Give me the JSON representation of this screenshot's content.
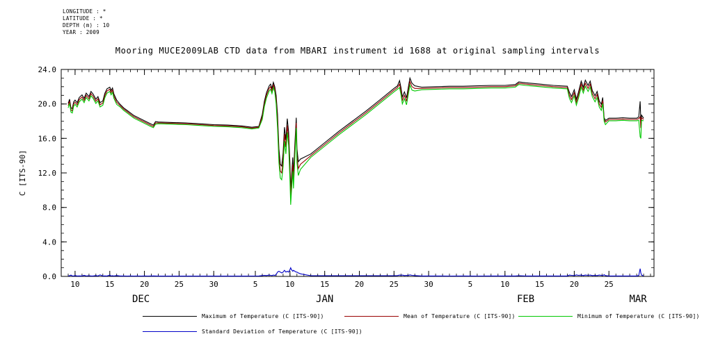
{
  "meta": {
    "longitude": "LONGITUDE : *",
    "latitude": "LATITUDE : *",
    "depth": "DEPTH (m) : 10",
    "year": "YEAR : 2009"
  },
  "title": "Mooring MUCE2009LAB CTD data from MBARI instrument id 1688 at original sampling intervals",
  "chart_data": {
    "type": "line",
    "title": "Mooring MUCE2009LAB CTD data from MBARI instrument id 1688 at original sampling intervals",
    "xlabel": "",
    "ylabel": "C [ITS-90]",
    "ylim": [
      0,
      24
    ],
    "xlim": [
      8,
      93.5
    ],
    "x_axis_note": "x in days, Dec 1 = 1, Jan 1 = 32, Feb 1 = 63, Mar 1 = 91",
    "grid": false,
    "legend_position": "bottom",
    "y_ticks": [
      {
        "v": 0,
        "label": "0.0"
      },
      {
        "v": 4,
        "label": "4.0"
      },
      {
        "v": 8,
        "label": "8.0"
      },
      {
        "v": 12,
        "label": "12.0"
      },
      {
        "v": 16,
        "label": "16.0"
      },
      {
        "v": 20,
        "label": "20.0"
      },
      {
        "v": 24,
        "label": "24.0"
      }
    ],
    "x_major_ticks": [
      {
        "day": 10,
        "label": "10"
      },
      {
        "day": 15,
        "label": "15"
      },
      {
        "day": 20,
        "label": "20"
      },
      {
        "day": 25,
        "label": "25"
      },
      {
        "day": 30,
        "label": "30"
      },
      {
        "day": 36,
        "label": "5"
      },
      {
        "day": 41,
        "label": "10"
      },
      {
        "day": 46,
        "label": "15"
      },
      {
        "day": 51,
        "label": "20"
      },
      {
        "day": 56,
        "label": "25"
      },
      {
        "day": 61,
        "label": "30"
      },
      {
        "day": 67,
        "label": "5"
      },
      {
        "day": 72,
        "label": "10"
      },
      {
        "day": 77,
        "label": "15"
      },
      {
        "day": 82,
        "label": "20"
      },
      {
        "day": 87,
        "label": "25"
      }
    ],
    "month_labels": [
      {
        "day": 19.5,
        "label": "DEC"
      },
      {
        "day": 46,
        "label": "JAN"
      },
      {
        "day": 75,
        "label": "FEB"
      },
      {
        "day": 91.2,
        "label": "MAR"
      }
    ],
    "x_days": [
      9.0,
      9.2,
      9.4,
      9.6,
      9.8,
      10.0,
      10.3,
      10.6,
      11.0,
      11.3,
      11.6,
      12.0,
      12.3,
      12.6,
      13.0,
      13.3,
      13.6,
      14.0,
      14.3,
      14.6,
      15.0,
      15.2,
      15.4,
      15.6,
      16.0,
      16.5,
      17.0,
      17.5,
      18.0,
      18.5,
      19.0,
      19.5,
      20.0,
      20.5,
      21.0,
      21.3,
      21.6,
      22.0,
      24.0,
      26.0,
      28.0,
      30.0,
      32.0,
      34.0,
      35.5,
      36.5,
      37.0,
      37.3,
      37.6,
      38.0,
      38.2,
      38.4,
      38.6,
      38.8,
      39.0,
      39.2,
      39.4,
      39.6,
      39.8,
      40.0,
      40.2,
      40.4,
      40.6,
      40.8,
      41.0,
      41.1,
      41.2,
      41.4,
      41.5,
      41.7,
      41.9,
      42.0,
      42.2,
      42.5,
      44.0,
      46.0,
      48.0,
      50.0,
      52.0,
      54.0,
      56.0,
      56.5,
      56.8,
      57.0,
      57.2,
      57.5,
      57.8,
      58.0,
      58.3,
      58.6,
      59.0,
      60.0,
      62.0,
      64.0,
      66.0,
      68.0,
      70.0,
      72.0,
      73.5,
      74.0,
      75.0,
      77.0,
      79.0,
      81.0,
      81.3,
      81.6,
      82.0,
      82.3,
      82.6,
      83.0,
      83.3,
      83.6,
      84.0,
      84.3,
      84.6,
      85.0,
      85.3,
      85.6,
      85.9,
      86.1,
      86.3,
      86.5,
      87.0,
      88.0,
      89.0,
      90.0,
      91.0,
      91.3,
      91.5,
      91.6,
      91.7,
      92.0
    ],
    "series": [
      {
        "name": "Maximum of Temperature (C [ITS-90])",
        "color": "#000000",
        "values": [
          20.05,
          20.55,
          19.55,
          19.45,
          20.25,
          20.45,
          20.15,
          20.75,
          21.05,
          20.65,
          21.25,
          20.85,
          21.45,
          21.15,
          20.55,
          20.85,
          20.15,
          20.35,
          21.25,
          21.75,
          21.95,
          21.55,
          21.85,
          21.15,
          20.45,
          19.95,
          19.55,
          19.25,
          18.95,
          18.65,
          18.45,
          18.25,
          18.05,
          17.85,
          17.65,
          17.55,
          17.95,
          17.9,
          17.85,
          17.8,
          17.7,
          17.6,
          17.55,
          17.45,
          17.3,
          17.4,
          18.8,
          20.3,
          21.3,
          22.1,
          22.3,
          21.8,
          22.5,
          22.0,
          21.0,
          18.8,
          14.8,
          13.0,
          12.8,
          14.3,
          17.3,
          15.8,
          18.3,
          16.8,
          13.0,
          10.0,
          11.3,
          13.8,
          11.8,
          15.3,
          18.4,
          14.8,
          13.3,
          13.6,
          14.2,
          15.5,
          16.8,
          18.0,
          19.2,
          20.5,
          21.8,
          22.1,
          22.7,
          21.9,
          20.8,
          21.4,
          20.7,
          21.6,
          23.0,
          22.4,
          22.1,
          21.95,
          22.0,
          22.05,
          22.05,
          22.1,
          22.15,
          22.15,
          22.25,
          22.55,
          22.45,
          22.3,
          22.15,
          22.05,
          21.35,
          20.85,
          21.65,
          20.55,
          21.35,
          22.65,
          21.95,
          22.75,
          22.15,
          22.65,
          21.55,
          20.95,
          21.45,
          20.35,
          19.95,
          20.75,
          18.4,
          18.1,
          18.35,
          18.35,
          18.4,
          18.35,
          18.35,
          18.5,
          20.3,
          18.0,
          18.7,
          18.35
        ]
      },
      {
        "name": "Mean of Temperature (C [ITS-90])",
        "color": "#990000",
        "values": [
          19.8,
          20.3,
          19.3,
          19.2,
          20.0,
          20.2,
          19.9,
          20.5,
          20.8,
          20.4,
          21.0,
          20.6,
          21.2,
          20.9,
          20.3,
          20.6,
          19.9,
          20.1,
          21.0,
          21.5,
          21.7,
          21.3,
          21.6,
          20.9,
          20.2,
          19.8,
          19.4,
          19.1,
          18.8,
          18.5,
          18.3,
          18.1,
          17.9,
          17.7,
          17.5,
          17.4,
          17.8,
          17.8,
          17.75,
          17.7,
          17.6,
          17.5,
          17.45,
          17.35,
          17.2,
          17.3,
          18.5,
          20.0,
          21.0,
          21.8,
          22.0,
          21.5,
          22.2,
          21.7,
          20.5,
          18.0,
          14.0,
          12.2,
          12.0,
          13.5,
          16.5,
          15.0,
          17.5,
          16.0,
          12.0,
          9.2,
          10.5,
          13.0,
          11.0,
          14.5,
          17.8,
          14.0,
          12.5,
          13.0,
          14.0,
          15.3,
          16.6,
          17.8,
          19.0,
          20.3,
          21.6,
          21.9,
          22.3,
          21.5,
          20.4,
          21.0,
          20.3,
          21.2,
          22.6,
          22.0,
          21.8,
          21.8,
          21.85,
          21.9,
          21.9,
          21.95,
          22.0,
          22.0,
          22.1,
          22.4,
          22.3,
          22.15,
          22.0,
          21.9,
          21.0,
          20.5,
          21.3,
          20.2,
          21.0,
          22.3,
          21.6,
          22.4,
          21.8,
          22.3,
          21.2,
          20.6,
          21.1,
          20.0,
          19.6,
          20.4,
          18.2,
          17.9,
          18.2,
          18.2,
          18.25,
          18.2,
          18.2,
          18.3,
          18.5,
          17.2,
          18.4,
          18.2
        ]
      },
      {
        "name": "Minimum of Temperature (C [ITS-90])",
        "color": "#00c800",
        "values": [
          19.55,
          20.05,
          19.05,
          18.95,
          19.75,
          19.95,
          19.65,
          20.25,
          20.55,
          20.15,
          20.75,
          20.35,
          20.95,
          20.65,
          20.05,
          20.35,
          19.65,
          19.85,
          20.75,
          21.25,
          21.45,
          21.05,
          21.35,
          20.65,
          19.95,
          19.65,
          19.25,
          18.95,
          18.65,
          18.35,
          18.15,
          17.95,
          17.75,
          17.55,
          17.35,
          17.25,
          17.65,
          17.7,
          17.65,
          17.6,
          17.5,
          17.4,
          17.35,
          17.25,
          17.1,
          17.2,
          18.2,
          19.7,
          20.7,
          21.5,
          21.7,
          21.2,
          21.9,
          21.4,
          20.0,
          17.2,
          13.2,
          11.4,
          11.2,
          12.7,
          15.7,
          14.2,
          16.7,
          15.2,
          11.0,
          8.3,
          9.7,
          12.2,
          10.2,
          13.7,
          17.2,
          13.2,
          11.7,
          12.4,
          13.8,
          15.1,
          16.4,
          17.6,
          18.8,
          20.1,
          21.4,
          21.7,
          21.9,
          21.1,
          20.0,
          20.6,
          19.9,
          20.8,
          22.2,
          21.6,
          21.5,
          21.65,
          21.7,
          21.75,
          21.75,
          21.8,
          21.85,
          21.85,
          21.95,
          22.25,
          22.15,
          22.0,
          21.85,
          21.75,
          20.65,
          20.15,
          20.95,
          19.85,
          20.65,
          21.95,
          21.25,
          22.05,
          21.45,
          21.95,
          20.85,
          20.25,
          20.75,
          19.65,
          19.25,
          20.05,
          18.0,
          17.6,
          18.05,
          18.05,
          18.1,
          18.05,
          18.05,
          18.1,
          16.2,
          16.0,
          18.1,
          18.05
        ]
      },
      {
        "name": "Standard Deviation of Temperature (C [ITS-90])",
        "color": "#0000c8",
        "values": [
          0.05,
          0.08,
          0.15,
          0.06,
          0.05,
          0.1,
          0.05,
          0.06,
          0.05,
          0.12,
          0.05,
          0.08,
          0.05,
          0.05,
          0.1,
          0.05,
          0.18,
          0.05,
          0.06,
          0.05,
          0.15,
          0.05,
          0.08,
          0.05,
          0.1,
          0.05,
          0.05,
          0.04,
          0.05,
          0.04,
          0.05,
          0.04,
          0.05,
          0.04,
          0.05,
          0.06,
          0.05,
          0.03,
          0.03,
          0.03,
          0.03,
          0.03,
          0.03,
          0.03,
          0.04,
          0.05,
          0.1,
          0.12,
          0.1,
          0.15,
          0.12,
          0.1,
          0.15,
          0.12,
          0.2,
          0.5,
          0.6,
          0.5,
          0.4,
          0.5,
          0.7,
          0.5,
          0.6,
          0.5,
          0.8,
          1.0,
          0.8,
          0.6,
          0.7,
          0.6,
          0.5,
          0.5,
          0.4,
          0.3,
          0.08,
          0.08,
          0.08,
          0.08,
          0.08,
          0.08,
          0.08,
          0.1,
          0.15,
          0.12,
          0.15,
          0.1,
          0.12,
          0.1,
          0.18,
          0.12,
          0.1,
          0.05,
          0.05,
          0.04,
          0.05,
          0.04,
          0.05,
          0.05,
          0.05,
          0.08,
          0.05,
          0.05,
          0.05,
          0.05,
          0.15,
          0.12,
          0.1,
          0.18,
          0.12,
          0.15,
          0.1,
          0.15,
          0.12,
          0.15,
          0.1,
          0.12,
          0.1,
          0.15,
          0.12,
          0.1,
          0.2,
          0.1,
          0.05,
          0.05,
          0.05,
          0.05,
          0.05,
          0.1,
          0.9,
          0.4,
          0.15,
          0.05
        ]
      }
    ]
  }
}
